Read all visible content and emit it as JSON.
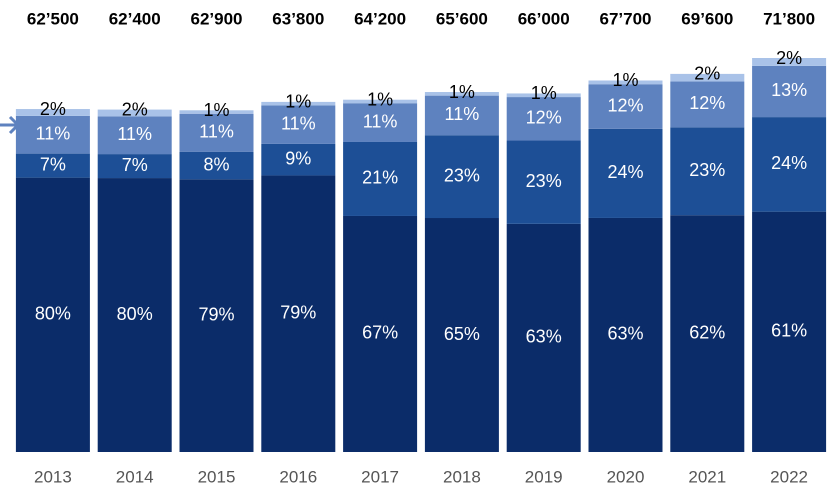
{
  "chart_data": {
    "type": "stacked-bar",
    "categories": [
      "2013",
      "2014",
      "2015",
      "2016",
      "2017",
      "2018",
      "2019",
      "2020",
      "2021",
      "2022"
    ],
    "totals": {
      "values": [
        62500,
        62400,
        62900,
        63800,
        64200,
        65600,
        66000,
        67700,
        69600,
        71800
      ],
      "value_labels": [
        "62’500",
        "62’400",
        "62’900",
        "63’800",
        "64’200",
        "65’600",
        "66’000",
        "67’700",
        "69’600",
        "71’800"
      ]
    },
    "series": [
      {
        "color": "#0b2c69",
        "values": [
          80,
          80,
          79,
          79,
          67,
          65,
          63,
          63,
          62,
          61
        ],
        "value_labels": [
          "80%",
          "80%",
          "79%",
          "79%",
          "67%",
          "65%",
          "63%",
          "63%",
          "62%",
          "61%"
        ]
      },
      {
        "color": "#1d4f96",
        "values": [
          7,
          7,
          8,
          9,
          21,
          23,
          23,
          24,
          23,
          24
        ],
        "value_labels": [
          "7%",
          "7%",
          "8%",
          "9%",
          "21%",
          "23%",
          "23%",
          "24%",
          "23%",
          "24%"
        ]
      },
      {
        "color": "#5e82bf",
        "values": [
          11,
          11,
          11,
          11,
          11,
          11,
          12,
          12,
          12,
          13
        ],
        "value_labels": [
          "11%",
          "11%",
          "11%",
          "11%",
          "11%",
          "11%",
          "12%",
          "12%",
          "12%",
          "13%"
        ]
      },
      {
        "color": "#a9c2e8",
        "values": [
          2,
          2,
          1,
          1,
          1,
          1,
          1,
          1,
          2,
          2
        ],
        "value_labels": [
          "2%",
          "2%",
          "1%",
          "1%",
          "1%",
          "1%",
          "1%",
          "1%",
          "2%",
          "2%"
        ]
      }
    ]
  }
}
